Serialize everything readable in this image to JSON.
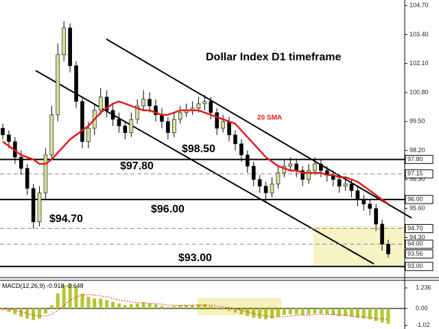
{
  "chart_data": [
    {
      "type": "candlestick",
      "title": "Dollar Index D1 timeframe",
      "annotations": [
        "$98.50",
        "$97.80",
        "$94.70",
        "$96.00",
        "$93.00"
      ],
      "ylim": [
        92.5,
        104.95
      ],
      "yticks": [
        {
          "value": 104.7,
          "label": "104.70"
        },
        {
          "value": 103.4,
          "label": "103.40"
        },
        {
          "value": 102.1,
          "label": "102.10"
        },
        {
          "value": 100.8,
          "label": "100.80"
        },
        {
          "value": 99.5,
          "label": "99.50"
        },
        {
          "value": 98.2,
          "label": "98.20"
        },
        {
          "value": 96.9,
          "label": "96.90"
        },
        {
          "value": 95.6,
          "label": "95.60"
        },
        {
          "value": 94.3,
          "label": "94.30"
        }
      ],
      "levels": [
        {
          "value": 97.8,
          "label": "97.80",
          "style": "solid"
        },
        {
          "value": 97.15,
          "label": "97.15",
          "style": "dashed"
        },
        {
          "value": 96.0,
          "label": "96.00",
          "style": "solid"
        },
        {
          "value": 94.7,
          "label": "94.70",
          "style": "dashed"
        },
        {
          "value": 94.0,
          "label": "94.00",
          "style": "dashed"
        },
        {
          "value": 93.56,
          "label": "93.56",
          "style": "none"
        },
        {
          "value": 93.0,
          "label": "93.00",
          "style": "solid"
        }
      ],
      "up_color": "#d4e09b",
      "down_color": "#000000",
      "ohlc": [
        [
          99.2,
          99.4,
          98.7,
          98.9
        ],
        [
          98.9,
          99.1,
          98.3,
          98.6
        ],
        [
          98.6,
          98.8,
          97.6,
          97.9
        ],
        [
          97.9,
          98.2,
          97.1,
          97.4
        ],
        [
          97.4,
          97.6,
          96.2,
          96.5
        ],
        [
          96.5,
          96.7,
          94.7,
          95.0
        ],
        [
          95.0,
          96.6,
          94.8,
          96.3
        ],
        [
          96.3,
          98.3,
          96.0,
          98.0
        ],
        [
          98.0,
          100.2,
          97.8,
          99.8
        ],
        [
          99.8,
          103.0,
          99.5,
          102.5
        ],
        [
          102.5,
          104.0,
          102.2,
          103.7
        ],
        [
          103.7,
          103.9,
          101.7,
          102.0
        ],
        [
          102.0,
          102.2,
          100.1,
          100.4
        ],
        [
          100.4,
          100.6,
          98.3,
          98.6
        ],
        [
          98.6,
          99.5,
          98.3,
          99.2
        ],
        [
          99.2,
          100.3,
          98.9,
          100.0
        ],
        [
          100.0,
          101.0,
          99.8,
          100.6
        ],
        [
          100.6,
          100.9,
          99.7,
          100.0
        ],
        [
          100.0,
          100.3,
          99.3,
          99.6
        ],
        [
          99.6,
          99.9,
          99.0,
          99.3
        ],
        [
          99.3,
          99.5,
          98.7,
          99.0
        ],
        [
          99.0,
          99.9,
          98.8,
          99.6
        ],
        [
          99.6,
          100.5,
          99.4,
          100.2
        ],
        [
          100.2,
          100.9,
          100.0,
          100.5
        ],
        [
          100.5,
          100.8,
          99.9,
          100.2
        ],
        [
          100.2,
          100.5,
          99.5,
          99.8
        ],
        [
          99.8,
          100.1,
          99.2,
          99.5
        ],
        [
          99.5,
          99.7,
          98.7,
          99.0
        ],
        [
          99.0,
          99.9,
          98.8,
          99.6
        ],
        [
          99.6,
          100.2,
          99.4,
          99.9
        ],
        [
          99.9,
          100.3,
          99.7,
          100.0
        ],
        [
          100.0,
          100.4,
          99.8,
          100.1
        ],
        [
          100.1,
          100.6,
          99.9,
          100.3
        ],
        [
          100.3,
          100.7,
          100.0,
          100.4
        ],
        [
          100.4,
          100.6,
          99.6,
          99.9
        ],
        [
          99.9,
          100.1,
          98.9,
          99.2
        ],
        [
          99.2,
          99.8,
          99.0,
          99.5
        ],
        [
          99.5,
          99.7,
          98.6,
          98.9
        ],
        [
          98.9,
          99.1,
          98.2,
          98.5
        ],
        [
          98.5,
          98.7,
          97.7,
          98.0
        ],
        [
          98.0,
          98.2,
          97.2,
          97.5
        ],
        [
          97.5,
          97.7,
          96.6,
          96.9
        ],
        [
          96.9,
          97.1,
          96.3,
          96.6
        ],
        [
          96.6,
          96.8,
          95.9,
          96.3
        ],
        [
          96.3,
          97.0,
          96.1,
          96.7
        ],
        [
          96.7,
          97.5,
          96.5,
          97.2
        ],
        [
          97.2,
          97.8,
          97.0,
          97.5
        ],
        [
          97.5,
          97.9,
          97.3,
          97.6
        ],
        [
          97.6,
          97.8,
          97.0,
          97.3
        ],
        [
          97.3,
          97.5,
          96.6,
          96.9
        ],
        [
          96.9,
          97.6,
          96.7,
          97.3
        ],
        [
          97.3,
          97.9,
          97.1,
          97.6
        ],
        [
          97.6,
          97.8,
          97.0,
          97.3
        ],
        [
          97.3,
          97.5,
          96.8,
          97.1
        ],
        [
          97.1,
          97.3,
          96.6,
          96.9
        ],
        [
          96.9,
          97.1,
          96.3,
          96.6
        ],
        [
          96.6,
          97.0,
          96.4,
          96.7
        ],
        [
          96.7,
          96.9,
          96.1,
          96.4
        ],
        [
          96.4,
          96.6,
          95.7,
          96.0
        ],
        [
          96.0,
          96.2,
          95.5,
          95.8
        ],
        [
          95.8,
          96.0,
          95.3,
          95.6
        ],
        [
          95.6,
          95.8,
          94.6,
          94.9
        ],
        [
          94.9,
          95.1,
          93.7,
          94.0
        ],
        [
          94.0,
          94.2,
          93.4,
          93.56
        ]
      ],
      "sma": {
        "name": "20 SMA",
        "color": "#e31b1b",
        "values": [
          98.6,
          98.4,
          98.2,
          98.0,
          97.9,
          97.8,
          97.6,
          97.6,
          97.8,
          98.1,
          98.4,
          98.7,
          98.9,
          99.1,
          99.3,
          99.6,
          99.9,
          100.1,
          100.3,
          100.4,
          100.3,
          100.2,
          100.1,
          100.0,
          100.0,
          99.9,
          99.8,
          99.8,
          99.9,
          100.0,
          100.0,
          100.0,
          100.0,
          99.9,
          99.8,
          99.7,
          99.6,
          99.5,
          99.4,
          99.1,
          98.8,
          98.5,
          98.2,
          97.9,
          97.7,
          97.5,
          97.4,
          97.3,
          97.3,
          97.2,
          97.2,
          97.2,
          97.2,
          97.1,
          97.1,
          97.0,
          97.0,
          96.9,
          96.8,
          96.6,
          96.4,
          96.2,
          96.0,
          95.8
        ]
      }
    },
    {
      "type": "macd",
      "name": "MACD(12,26,9)",
      "macd_value": -0.918,
      "signal_value": -0.648,
      "ylim": [
        -1.15,
        1.65
      ],
      "yticks": [
        1.236,
        {
          "value": 0,
          "label": "0.00"
        },
        -1.02
      ],
      "series": [
        {
          "name": "MACD",
          "color": "#b5c634",
          "values": [
            -0.1,
            -0.2,
            -0.35,
            -0.5,
            -0.6,
            -0.7,
            -0.6,
            -0.3,
            0.2,
            0.9,
            1.4,
            1.5,
            1.3,
            0.9,
            0.7,
            0.6,
            0.6,
            0.5,
            0.4,
            0.3,
            0.2,
            0.25,
            0.3,
            0.35,
            0.3,
            0.25,
            0.15,
            0.1,
            0.15,
            0.2,
            0.2,
            0.2,
            0.25,
            0.25,
            0.15,
            0.0,
            -0.05,
            -0.15,
            -0.25,
            -0.35,
            -0.45,
            -0.55,
            -0.6,
            -0.65,
            -0.6,
            -0.5,
            -0.4,
            -0.35,
            -0.35,
            -0.4,
            -0.35,
            -0.3,
            -0.3,
            -0.35,
            -0.4,
            -0.45,
            -0.45,
            -0.5,
            -0.55,
            -0.6,
            -0.65,
            -0.75,
            -0.85,
            -0.918
          ]
        },
        {
          "name": "Signal",
          "color": "#e31b1b",
          "values": [
            0.0,
            -0.05,
            -0.1,
            -0.2,
            -0.3,
            -0.4,
            -0.45,
            -0.45,
            -0.35,
            -0.1,
            0.2,
            0.5,
            0.7,
            0.8,
            0.85,
            0.8,
            0.75,
            0.7,
            0.6,
            0.5,
            0.45,
            0.4,
            0.35,
            0.35,
            0.3,
            0.3,
            0.25,
            0.2,
            0.2,
            0.2,
            0.2,
            0.2,
            0.2,
            0.2,
            0.2,
            0.15,
            0.1,
            0.05,
            0.0,
            -0.1,
            -0.2,
            -0.3,
            -0.4,
            -0.45,
            -0.5,
            -0.5,
            -0.5,
            -0.45,
            -0.4,
            -0.4,
            -0.4,
            -0.35,
            -0.35,
            -0.35,
            -0.35,
            -0.4,
            -0.4,
            -0.45,
            -0.5,
            -0.5,
            -0.55,
            -0.6,
            -0.62,
            -0.648
          ]
        }
      ]
    }
  ]
}
